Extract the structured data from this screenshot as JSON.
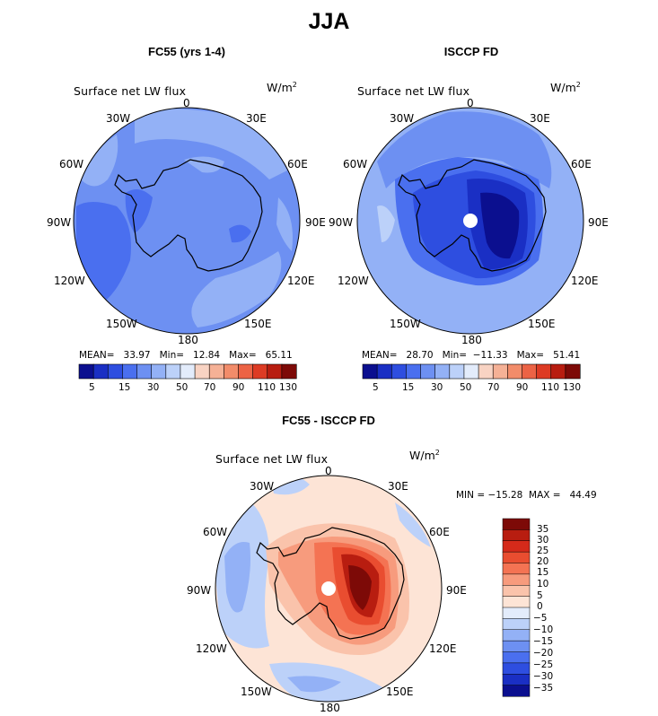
{
  "figure": {
    "title": "JJA"
  },
  "panels": [
    {
      "title": "FC55 (yrs 1-4)",
      "variable": "Surface net LW flux",
      "units_base": "W/m",
      "units_exp": "2",
      "stats": "MEAN=   33.97   Min=   12.84   Max=   65.11",
      "colorbar_labels": [
        "5",
        "15",
        "30",
        "50",
        "70",
        "90",
        "110",
        "130"
      ]
    },
    {
      "title": "ISCCP FD",
      "variable": "Surface net LW flux",
      "units_base": "W/m",
      "units_exp": "2",
      "stats": "MEAN=   28.70   Min=  −11.33   Max=   51.41",
      "colorbar_labels": [
        "5",
        "15",
        "30",
        "50",
        "70",
        "90",
        "110",
        "130"
      ]
    },
    {
      "title": "FC55 - ISCCP FD",
      "variable": "Surface net LW flux",
      "units_base": "W/m",
      "units_exp": "2",
      "stats": "MIN = −15.28  MAX =   44.49",
      "colorbar_labels": [
        "35",
        "30",
        "25",
        "20",
        "15",
        "10",
        "5",
        "0",
        "−5",
        "−10",
        "−15",
        "−20",
        "−25",
        "−30",
        "−35"
      ]
    }
  ],
  "longitude_labels": [
    "0",
    "30E",
    "60E",
    "90E",
    "120E",
    "150E",
    "180",
    "150W",
    "120W",
    "90W",
    "60W",
    "30W"
  ],
  "colors": {
    "abs_scale": [
      "#0b0f8f",
      "#1a2fc4",
      "#2e4ee0",
      "#4a6fef",
      "#6d90f2",
      "#93b1f6",
      "#bcd1f9",
      "#e3ecfb",
      "#f8d3c3",
      "#f5b196",
      "#f28c6a",
      "#ec6345",
      "#dd3b24",
      "#b81d10",
      "#7d0a07"
    ],
    "diff_scale": [
      "#7d0a07",
      "#b81d10",
      "#d52a1a",
      "#e94d30",
      "#f47353",
      "#f79b7d",
      "#fac3ab",
      "#fde4d6",
      "#e3ecfb",
      "#bcd1f9",
      "#93b1f6",
      "#6d90f2",
      "#4a6fef",
      "#2e4ee0",
      "#1a2fc4",
      "#0b0f8f"
    ]
  }
}
